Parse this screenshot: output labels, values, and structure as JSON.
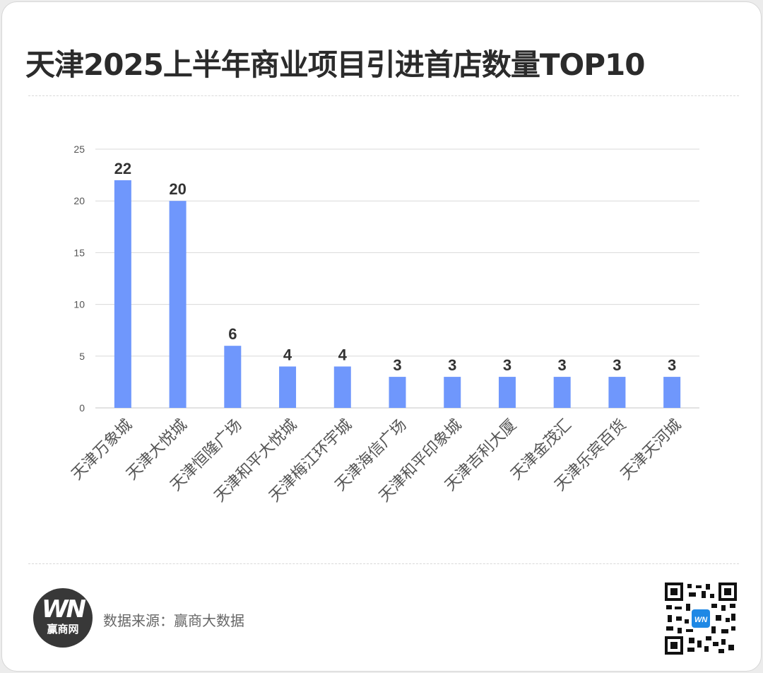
{
  "title": "天津2025上半年商业项目引进首店数量TOP10",
  "colors": {
    "bar": "#6f97fc",
    "grid": "#d9d9d9",
    "axis_text": "#555555",
    "value_text": "#333333",
    "title": "#2b2b2b"
  },
  "chart_data": {
    "type": "bar",
    "categories": [
      "天津万象城",
      "天津大悦城",
      "天津恒隆广场",
      "天津和平大悦城",
      "天津梅江环宇城",
      "天津海信广场",
      "天津和平印象城",
      "天津吉利大厦",
      "天津金茂汇",
      "天津乐宾百货",
      "天津天河城"
    ],
    "values": [
      22,
      20,
      6,
      4,
      4,
      3,
      3,
      3,
      3,
      3,
      3
    ],
    "yticks": [
      0,
      5,
      10,
      15,
      20,
      25
    ],
    "ylim": [
      0,
      25
    ],
    "grid": true,
    "data_labels": true,
    "xlabel": "",
    "ylabel": ""
  },
  "footer": {
    "logo_mark": "WN",
    "logo_text": "赢商网",
    "source": "数据来源：赢商大数据",
    "qr_icon": "qr-code-icon"
  }
}
